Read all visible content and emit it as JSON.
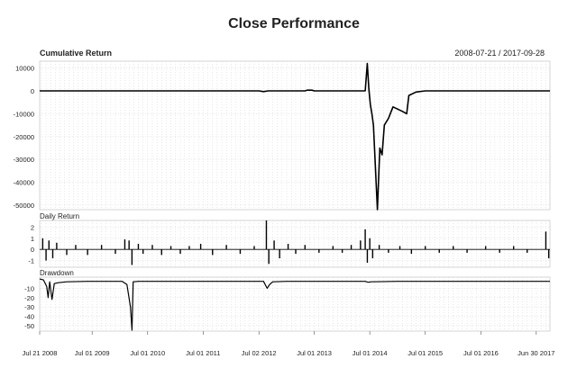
{
  "chart_data": {
    "type": "line",
    "title": "Close Performance",
    "date_range": "2008-07-21 / 2017-09-28",
    "x_range": [
      "2008-07-21",
      "2017-09-28"
    ],
    "x_ticks": [
      {
        "date": "2008-07-21",
        "label": "Jul 21 2008"
      },
      {
        "date": "2009-07-01",
        "label": "Jul 01 2009"
      },
      {
        "date": "2010-07-01",
        "label": "Jul 01 2010"
      },
      {
        "date": "2011-07-01",
        "label": "Jul 01 2011"
      },
      {
        "date": "2012-07-02",
        "label": "Jul 02 2012"
      },
      {
        "date": "2013-07-01",
        "label": "Jul 01 2013"
      },
      {
        "date": "2014-07-01",
        "label": "Jul 01 2014"
      },
      {
        "date": "2015-07-01",
        "label": "Jul 01 2015"
      },
      {
        "date": "2016-07-01",
        "label": "Jul 01 2016"
      },
      {
        "date": "2017-06-30",
        "label": "Jun 30 2017"
      }
    ],
    "grid": true,
    "panels": [
      {
        "name": "Cumulative Return",
        "ylim": [
          -52000,
          13000
        ],
        "yticks": [
          10000,
          0,
          -10000,
          -20000,
          -30000,
          -40000,
          -50000
        ],
        "points": [
          [
            "2008-07-21",
            0
          ],
          [
            "2010-07-01",
            0
          ],
          [
            "2012-07-02",
            0
          ],
          [
            "2012-08-01",
            -300
          ],
          [
            "2012-09-01",
            0
          ],
          [
            "2013-05-01",
            0
          ],
          [
            "2013-05-15",
            300
          ],
          [
            "2013-06-15",
            300
          ],
          [
            "2013-07-01",
            0
          ],
          [
            "2014-06-01",
            0
          ],
          [
            "2014-06-15",
            12000
          ],
          [
            "2014-06-25",
            1000
          ],
          [
            "2014-07-05",
            -6000
          ],
          [
            "2014-07-15",
            -10000
          ],
          [
            "2014-07-25",
            -15000
          ],
          [
            "2014-08-05",
            -30000
          ],
          [
            "2014-08-20",
            -52000
          ],
          [
            "2014-09-05",
            -25000
          ],
          [
            "2014-09-20",
            -28000
          ],
          [
            "2014-10-05",
            -15000
          ],
          [
            "2014-11-01",
            -12000
          ],
          [
            "2014-12-01",
            -7000
          ],
          [
            "2015-01-01",
            -8000
          ],
          [
            "2015-02-01",
            -9000
          ],
          [
            "2015-03-01",
            -10000
          ],
          [
            "2015-03-15",
            -2000
          ],
          [
            "2015-05-01",
            -500
          ],
          [
            "2015-07-01",
            0
          ],
          [
            "2017-09-28",
            0
          ]
        ]
      },
      {
        "name": "Daily Return",
        "ylim": [
          -1.6,
          2.6
        ],
        "yticks": [
          2,
          1,
          0,
          -1
        ],
        "spikes": [
          [
            "2008-08-10",
            1.0
          ],
          [
            "2008-09-01",
            -1.0
          ],
          [
            "2008-09-20",
            0.8
          ],
          [
            "2008-10-15",
            -0.8
          ],
          [
            "2008-11-10",
            0.6
          ],
          [
            "2009-01-15",
            -0.5
          ],
          [
            "2009-03-15",
            0.4
          ],
          [
            "2009-06-01",
            -0.5
          ],
          [
            "2009-09-01",
            0.4
          ],
          [
            "2009-12-01",
            -0.4
          ],
          [
            "2010-02-01",
            0.9
          ],
          [
            "2010-03-01",
            0.8
          ],
          [
            "2010-03-20",
            -1.4
          ],
          [
            "2010-05-01",
            0.5
          ],
          [
            "2010-06-01",
            -0.4
          ],
          [
            "2010-08-01",
            0.4
          ],
          [
            "2010-10-01",
            -0.5
          ],
          [
            "2010-12-01",
            0.3
          ],
          [
            "2011-02-01",
            -0.4
          ],
          [
            "2011-04-01",
            0.3
          ],
          [
            "2011-06-15",
            0.5
          ],
          [
            "2011-09-01",
            -0.5
          ],
          [
            "2011-12-01",
            0.4
          ],
          [
            "2012-03-01",
            -0.4
          ],
          [
            "2012-06-01",
            0.3
          ],
          [
            "2012-08-20",
            2.6
          ],
          [
            "2012-09-05",
            -1.3
          ],
          [
            "2012-10-10",
            0.8
          ],
          [
            "2012-11-15",
            -0.8
          ],
          [
            "2013-01-10",
            0.5
          ],
          [
            "2013-03-01",
            -0.4
          ],
          [
            "2013-05-01",
            0.4
          ],
          [
            "2013-08-01",
            -0.3
          ],
          [
            "2013-11-01",
            0.3
          ],
          [
            "2014-01-01",
            -0.3
          ],
          [
            "2014-03-01",
            0.4
          ],
          [
            "2014-05-01",
            0.8
          ],
          [
            "2014-06-01",
            1.8
          ],
          [
            "2014-06-15",
            -1.2
          ],
          [
            "2014-07-01",
            1.0
          ],
          [
            "2014-07-20",
            -0.8
          ],
          [
            "2014-09-01",
            0.4
          ],
          [
            "2014-11-01",
            -0.3
          ],
          [
            "2015-01-15",
            0.3
          ],
          [
            "2015-04-01",
            -0.4
          ],
          [
            "2015-07-01",
            0.3
          ],
          [
            "2015-10-01",
            -0.3
          ],
          [
            "2016-01-01",
            0.3
          ],
          [
            "2016-04-01",
            -0.3
          ],
          [
            "2016-08-01",
            0.3
          ],
          [
            "2016-11-01",
            -0.3
          ],
          [
            "2017-02-01",
            0.3
          ],
          [
            "2017-05-01",
            -0.3
          ],
          [
            "2017-09-01",
            1.6
          ],
          [
            "2017-09-20",
            -0.8
          ]
        ]
      },
      {
        "name": "Drawdown",
        "ylim": [
          -56,
          2
        ],
        "yticks": [
          -10,
          -20,
          -30,
          -40,
          -50
        ],
        "points": [
          [
            "2008-07-21",
            0
          ],
          [
            "2008-08-15",
            -1
          ],
          [
            "2008-09-05",
            -8
          ],
          [
            "2008-09-15",
            -20
          ],
          [
            "2008-09-25",
            -3
          ],
          [
            "2008-10-10",
            -22
          ],
          [
            "2008-10-25",
            -5
          ],
          [
            "2008-11-20",
            -4
          ],
          [
            "2009-01-15",
            -3
          ],
          [
            "2009-06-01",
            -2.5
          ],
          [
            "2009-12-01",
            -2.5
          ],
          [
            "2010-01-15",
            -2.5
          ],
          [
            "2010-02-15",
            -6
          ],
          [
            "2010-03-10",
            -30
          ],
          [
            "2010-03-20",
            -55
          ],
          [
            "2010-03-28",
            -3
          ],
          [
            "2010-05-01",
            -2.5
          ],
          [
            "2011-01-01",
            -2.5
          ],
          [
            "2012-01-01",
            -2.5
          ],
          [
            "2012-08-01",
            -2.5
          ],
          [
            "2012-08-25",
            -10
          ],
          [
            "2012-09-10",
            -6
          ],
          [
            "2012-10-01",
            -3
          ],
          [
            "2013-01-01",
            -2.5
          ],
          [
            "2014-01-01",
            -2.5
          ],
          [
            "2014-06-01",
            -2.5
          ],
          [
            "2014-06-20",
            -3.5
          ],
          [
            "2014-07-10",
            -3
          ],
          [
            "2015-01-01",
            -2.5
          ],
          [
            "2016-01-01",
            -2.5
          ],
          [
            "2017-01-01",
            -2.5
          ],
          [
            "2017-09-28",
            -2.5
          ]
        ]
      }
    ]
  }
}
